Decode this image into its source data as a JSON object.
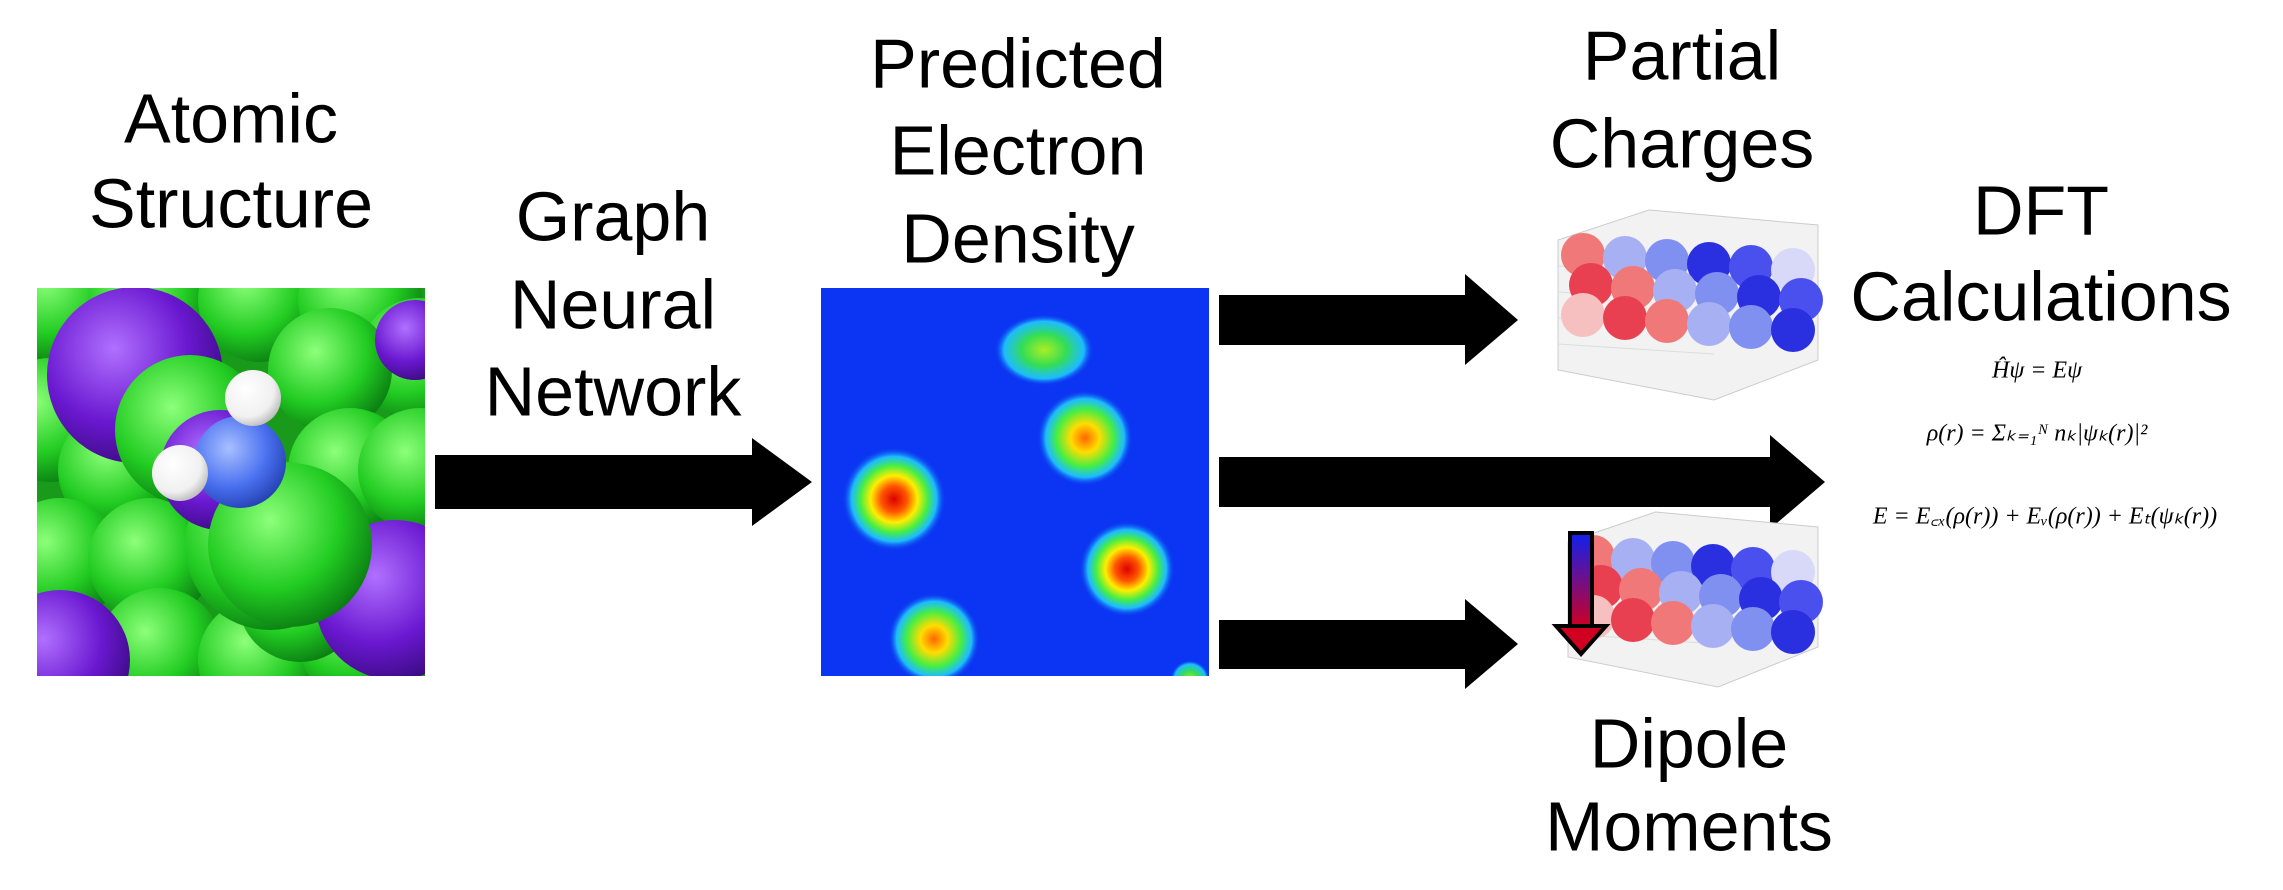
{
  "atomic_structure": {
    "label": [
      "Atomic",
      "Structure"
    ]
  },
  "model": {
    "label": [
      "Graph",
      "Neural",
      "Network"
    ]
  },
  "density": {
    "label": [
      "Predicted",
      "Electron",
      "Density"
    ]
  },
  "partial_charges": {
    "label": [
      "Partial",
      "Charges"
    ]
  },
  "dipole_moments": {
    "label": [
      "Dipole",
      "Moments"
    ]
  },
  "dft": {
    "label": [
      "DFT",
      "Calculations"
    ],
    "equations": [
      "Ĥψ = Eψ",
      "ρ(r) = Σₖ₌₁ᴺ nₖ|ψₖ(r)|²",
      "E = E꜀ₓ(ρ(r)) + Eᵥ(ρ(r)) + Eₜ(ψₖ(r))"
    ]
  }
}
